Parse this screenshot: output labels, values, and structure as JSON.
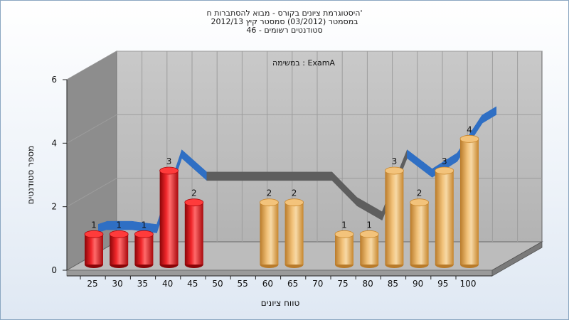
{
  "chart_data": {
    "type": "bar",
    "title_lines": [
      "היסטוגרמת ציונים בקורס - מבוא להסתברות ח'",
      "במסמטר (03/2012) סמסטר קיץ 2012/13",
      "סטודנטים רשומים - 46"
    ],
    "annotation": "במשימה : ExamA",
    "xlabel": "טווח ציונים",
    "ylabel": "מספר סטודנטים",
    "categories": [
      "25",
      "30",
      "35",
      "40",
      "45",
      "50",
      "55",
      "60",
      "65",
      "70",
      "75",
      "80",
      "85",
      "90",
      "95",
      "100"
    ],
    "values": [
      1,
      1,
      1,
      3,
      2,
      0,
      0,
      2,
      2,
      0,
      1,
      1,
      3,
      2,
      3,
      4
    ],
    "trend": [
      1.05,
      1.05,
      0.95,
      3.3,
      2.6,
      2.6,
      2.6,
      2.6,
      2.6,
      2.6,
      1.8,
      1.35,
      3.3,
      2.7,
      3.2,
      4.4
    ],
    "ylim": [
      0,
      6
    ],
    "yticks": [
      0,
      2,
      4,
      6
    ],
    "colors": {
      "fail": "#e8141a",
      "pass": "#e4a544",
      "trend_visible": "#2f6fc4",
      "trend_behind": "#5e5e5e",
      "wall": "#8f8f8f",
      "floor": "#c4c4c4"
    }
  }
}
